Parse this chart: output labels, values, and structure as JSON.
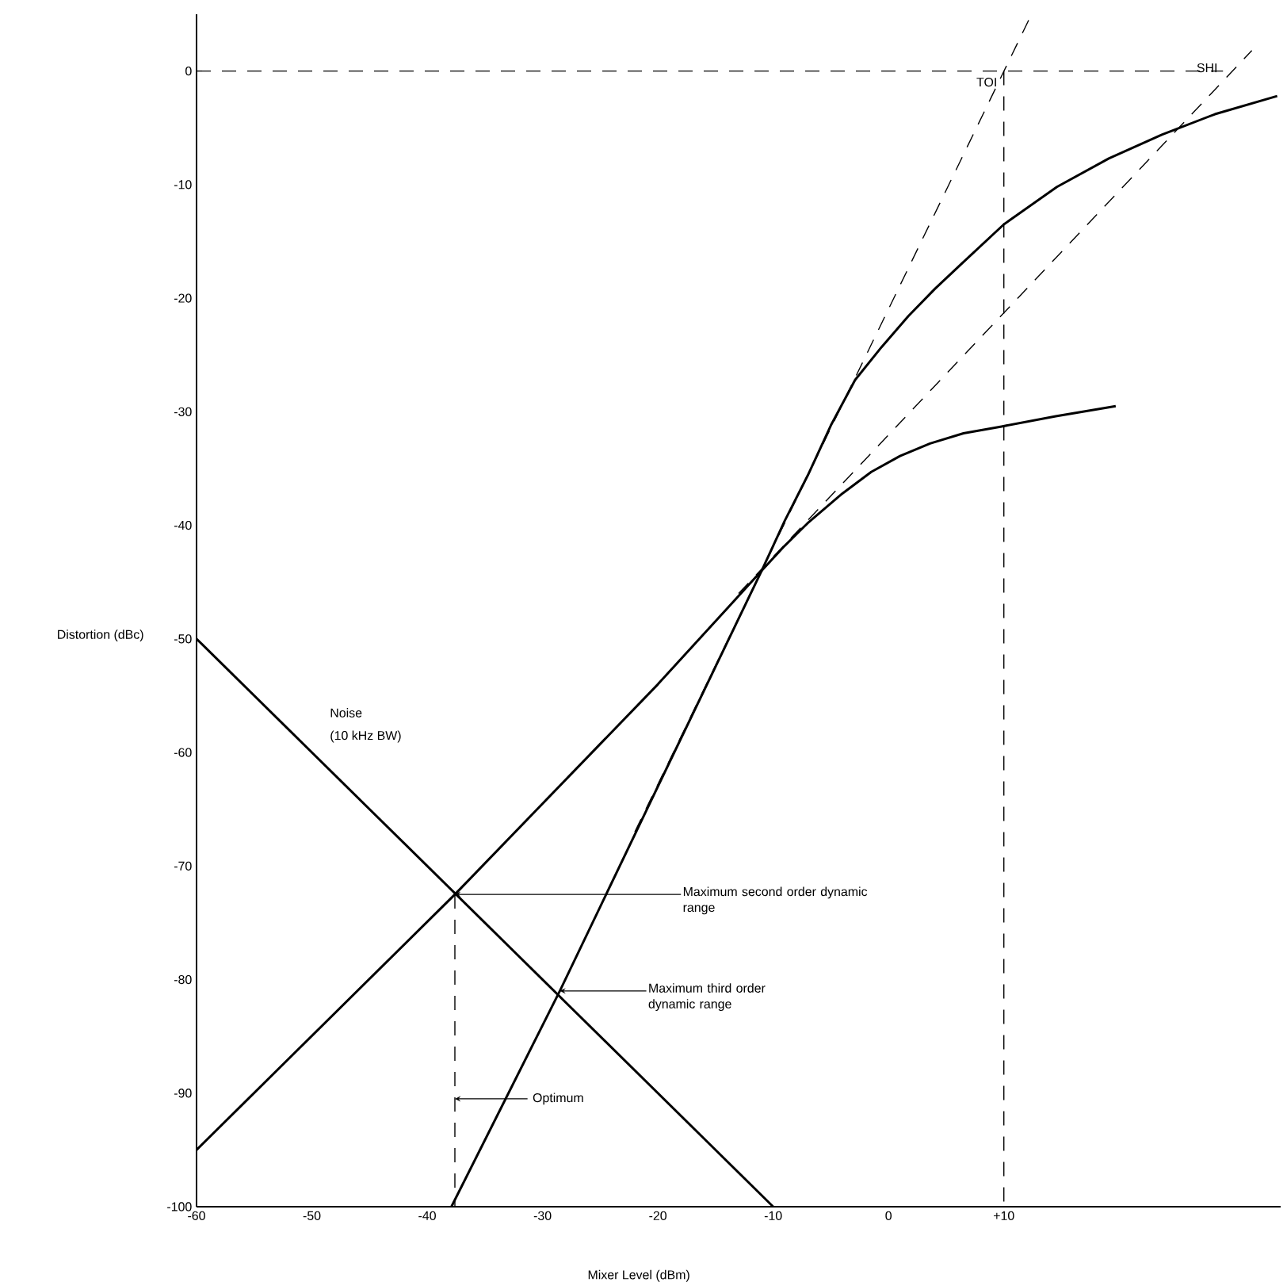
{
  "chart_data": {
    "type": "line",
    "xlabel": "Mixer Level  (dBm)",
    "ylabel": "Distortion (dBc)",
    "xlim": [
      -60,
      34
    ],
    "ylim": [
      -100,
      5
    ],
    "xticks": [
      -60,
      -50,
      -40,
      -30,
      -20,
      -10,
      0,
      {
        "value": 10,
        "label": "+10"
      }
    ],
    "yticks": [
      -100,
      -90,
      -80,
      -70,
      -60,
      -50,
      -40,
      -30,
      -20,
      -10,
      0
    ],
    "series": [
      {
        "color": "#000000",
        "line_style": "solid",
        "x": [
          -60,
          -10
        ],
        "values": [
          -50,
          -100
        ]
      },
      {
        "color": "#000000",
        "line_style": "solid",
        "x": [
          -60,
          -37.6,
          -20,
          -11,
          -9,
          -7,
          -4,
          -1.5,
          1,
          3.6,
          6.5,
          9.8,
          14.5,
          19.7
        ],
        "values": [
          -95,
          -72.5,
          -54,
          -44,
          -41.8,
          -39.8,
          -37.2,
          -35.3,
          -33.9,
          -32.8,
          -31.9,
          -31.3,
          -30.4,
          -29.5
        ]
      },
      {
        "color": "#000000",
        "line_style": "solid",
        "x": [
          -37.9,
          -28.5,
          -20,
          -11,
          -9,
          -7,
          -5,
          -2.9,
          -0.6,
          1.7,
          4,
          6.3,
          10,
          14.6,
          19.1,
          23.7,
          28.3,
          33.7
        ],
        "values": [
          -100,
          -81,
          -63,
          -44,
          -39.6,
          -35.6,
          -31.2,
          -27.2,
          -24.3,
          -21.6,
          -19.2,
          -17,
          -13.5,
          -10.2,
          -7.7,
          -5.6,
          -3.8,
          -2.2
        ]
      },
      {
        "color": "#000000",
        "line_style": "dashed",
        "x": [
          -22,
          12.4
        ],
        "values": [
          -67,
          5
        ]
      },
      {
        "color": "#000000",
        "line_style": "dashed",
        "x": [
          -13,
          31.5
        ],
        "values": [
          -46,
          1.8
        ]
      },
      {
        "color": "#000000",
        "line_style": "dashed",
        "x": [
          -60,
          29
        ],
        "values": [
          0,
          0
        ]
      },
      {
        "color": "#000000",
        "line_style": "dashed",
        "x": [
          10,
          10
        ],
        "values": [
          0,
          -100
        ]
      },
      {
        "color": "#000000",
        "line_style": "dashed",
        "x": [
          -37.6,
          -37.6
        ],
        "values": [
          -72.5,
          -100
        ]
      }
    ],
    "annotations": [
      "Noise",
      "(10 kHz BW)",
      {
        "text": "TOI",
        "x": 10,
        "y": 0
      },
      {
        "text": "SHI",
        "x": 29.8,
        "y": 0
      },
      {
        "text": "Maximum second order dynamic range",
        "x": -37.6,
        "y": -72.5
      },
      {
        "text": "Maximum third order dynamic range",
        "x": -28.5,
        "y": -81
      },
      {
        "text": "Optimum",
        "x": -37.6,
        "y": -90.5
      }
    ]
  }
}
